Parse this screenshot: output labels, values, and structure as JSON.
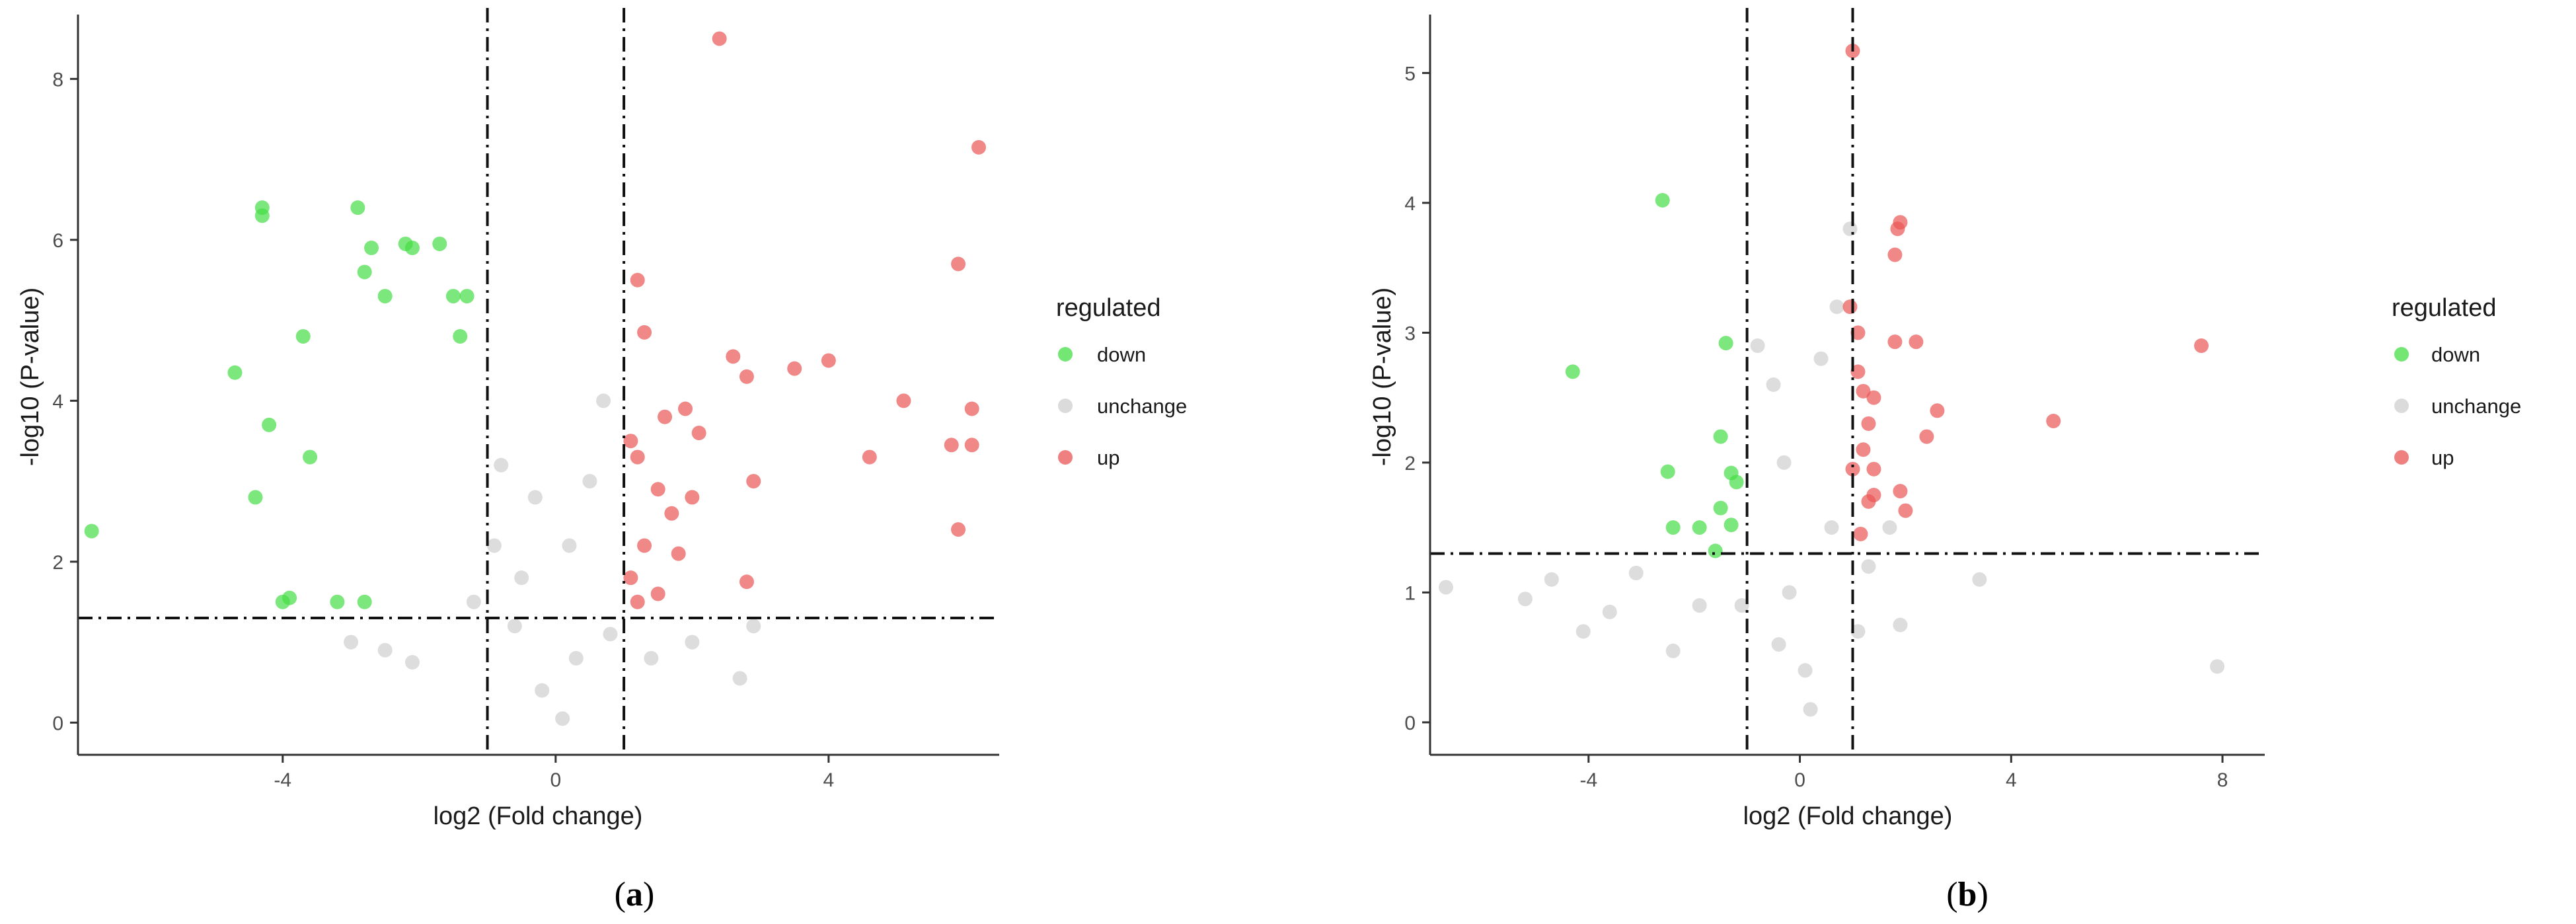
{
  "colors": {
    "down": "#44dd44",
    "unchange": "#cfcfcf",
    "up": "#e95555",
    "line": "#111111"
  },
  "chart_data": [
    {
      "id": "a",
      "type": "scatter",
      "caption": {
        "open": "(",
        "letter": "a",
        "close": ")"
      },
      "xlabel": "log2 (Fold change)",
      "ylabel": "-log10 (P-value)",
      "xlim": [
        -7,
        6.5
      ],
      "ylim": [
        -0.4,
        8.8
      ],
      "xticks": [
        -4,
        0,
        4
      ],
      "xtick_labels": [
        "-4",
        "0",
        "4"
      ],
      "yticks": [
        0,
        2,
        4,
        6,
        8
      ],
      "ytick_labels": [
        "0",
        "2",
        "4",
        "6",
        "8"
      ],
      "thresholds": {
        "fc": [
          -1,
          1
        ],
        "p": 1.3
      },
      "legend": {
        "title": "regulated",
        "entries": [
          {
            "key": "down",
            "label": "down"
          },
          {
            "key": "unchange",
            "label": "unchange"
          },
          {
            "key": "up",
            "label": "up"
          }
        ]
      },
      "series": [
        {
          "name": "down",
          "points": [
            [
              -6.8,
              2.38
            ],
            [
              -4.7,
              4.35
            ],
            [
              -4.3,
              6.4
            ],
            [
              -4.3,
              6.3
            ],
            [
              -4.2,
              3.7
            ],
            [
              -4.0,
              1.5
            ],
            [
              -3.9,
              1.55
            ],
            [
              -4.4,
              2.8
            ],
            [
              -3.7,
              4.8
            ],
            [
              -3.6,
              3.3
            ],
            [
              -2.9,
              6.4
            ],
            [
              -2.8,
              5.6
            ],
            [
              -2.7,
              5.9
            ],
            [
              -2.5,
              5.3
            ],
            [
              -2.2,
              5.95
            ],
            [
              -2.1,
              5.9
            ],
            [
              -1.7,
              5.95
            ],
            [
              -1.5,
              5.3
            ],
            [
              -1.3,
              5.3
            ],
            [
              -1.4,
              4.8
            ],
            [
              -3.2,
              1.5
            ],
            [
              -2.8,
              1.5
            ]
          ]
        },
        {
          "name": "unchange",
          "points": [
            [
              -3.0,
              1.0
            ],
            [
              -2.5,
              0.9
            ],
            [
              -1.2,
              1.5
            ],
            [
              -0.9,
              2.2
            ],
            [
              -0.8,
              3.2
            ],
            [
              -0.5,
              1.8
            ],
            [
              -0.3,
              2.8
            ],
            [
              0.2,
              2.2
            ],
            [
              0.5,
              3.0
            ],
            [
              0.7,
              4.0
            ],
            [
              1.4,
              0.8
            ],
            [
              2.0,
              1.0
            ],
            [
              2.7,
              0.55
            ],
            [
              2.9,
              1.2
            ],
            [
              -2.1,
              0.75
            ],
            [
              0.8,
              1.1
            ],
            [
              -0.2,
              0.4
            ],
            [
              0.1,
              0.05
            ],
            [
              0.3,
              0.8
            ],
            [
              -0.6,
              1.2
            ]
          ]
        },
        {
          "name": "up",
          "points": [
            [
              2.4,
              8.5
            ],
            [
              6.2,
              7.15
            ],
            [
              5.9,
              5.7
            ],
            [
              1.2,
              5.5
            ],
            [
              1.3,
              4.85
            ],
            [
              2.6,
              4.55
            ],
            [
              2.8,
              4.3
            ],
            [
              3.5,
              4.4
            ],
            [
              4.0,
              4.5
            ],
            [
              5.1,
              4.0
            ],
            [
              6.1,
              3.9
            ],
            [
              4.6,
              3.3
            ],
            [
              5.8,
              3.45
            ],
            [
              6.1,
              3.45
            ],
            [
              5.9,
              2.4
            ],
            [
              2.9,
              3.0
            ],
            [
              2.8,
              1.75
            ],
            [
              1.6,
              3.8
            ],
            [
              1.9,
              3.9
            ],
            [
              2.1,
              3.6
            ],
            [
              1.1,
              3.5
            ],
            [
              1.2,
              3.3
            ],
            [
              1.5,
              2.9
            ],
            [
              2.0,
              2.8
            ],
            [
              1.7,
              2.6
            ],
            [
              1.3,
              2.2
            ],
            [
              1.8,
              2.1
            ],
            [
              1.1,
              1.8
            ],
            [
              1.5,
              1.6
            ],
            [
              1.2,
              1.5
            ]
          ]
        }
      ]
    },
    {
      "id": "b",
      "type": "scatter",
      "caption": {
        "open": "(",
        "letter": "b",
        "close": ")"
      },
      "xlabel": "log2 (Fold change)",
      "ylabel": "-log10 (P-value)",
      "xlim": [
        -7,
        8.8
      ],
      "ylim": [
        -0.25,
        5.45
      ],
      "xticks": [
        -4,
        0,
        4,
        8
      ],
      "xtick_labels": [
        "-4",
        "0",
        "4",
        "8"
      ],
      "yticks": [
        0,
        1,
        2,
        3,
        4,
        5
      ],
      "ytick_labels": [
        "0",
        "1",
        "2",
        "3",
        "4",
        "5"
      ],
      "thresholds": {
        "fc": [
          -1,
          1
        ],
        "p": 1.3
      },
      "legend": {
        "title": "regulated",
        "entries": [
          {
            "key": "down",
            "label": "down"
          },
          {
            "key": "unchange",
            "label": "unchange"
          },
          {
            "key": "up",
            "label": "up"
          }
        ]
      },
      "series": [
        {
          "name": "down",
          "points": [
            [
              -2.6,
              4.02
            ],
            [
              -4.3,
              2.7
            ],
            [
              -1.4,
              2.92
            ],
            [
              -2.5,
              1.93
            ],
            [
              -1.5,
              2.2
            ],
            [
              -1.3,
              1.92
            ],
            [
              -1.2,
              1.85
            ],
            [
              -1.5,
              1.65
            ],
            [
              -2.4,
              1.5
            ],
            [
              -1.9,
              1.5
            ],
            [
              -1.6,
              1.32
            ],
            [
              -1.3,
              1.52
            ]
          ]
        },
        {
          "name": "unchange",
          "points": [
            [
              -6.7,
              1.04
            ],
            [
              -5.2,
              0.95
            ],
            [
              -4.7,
              1.1
            ],
            [
              -4.1,
              0.7
            ],
            [
              -3.6,
              0.85
            ],
            [
              -3.1,
              1.15
            ],
            [
              -2.4,
              0.55
            ],
            [
              -1.9,
              0.9
            ],
            [
              -1.1,
              0.9
            ],
            [
              -0.8,
              2.9
            ],
            [
              -0.5,
              2.6
            ],
            [
              -0.3,
              2.0
            ],
            [
              0.4,
              2.8
            ],
            [
              0.7,
              3.2
            ],
            [
              0.95,
              3.8
            ],
            [
              0.6,
              1.5
            ],
            [
              -0.2,
              1.0
            ],
            [
              0.1,
              0.4
            ],
            [
              0.2,
              0.1
            ],
            [
              -0.4,
              0.6
            ],
            [
              1.3,
              1.2
            ],
            [
              1.7,
              1.5
            ],
            [
              3.4,
              1.1
            ],
            [
              1.9,
              0.75
            ],
            [
              7.9,
              0.43
            ],
            [
              1.1,
              0.7
            ]
          ]
        },
        {
          "name": "up",
          "points": [
            [
              1.0,
              5.17
            ],
            [
              1.9,
              3.85
            ],
            [
              1.85,
              3.8
            ],
            [
              1.8,
              3.6
            ],
            [
              0.95,
              3.2
            ],
            [
              1.1,
              3.0
            ],
            [
              1.8,
              2.93
            ],
            [
              2.2,
              2.93
            ],
            [
              7.6,
              2.9
            ],
            [
              1.1,
              2.7
            ],
            [
              1.2,
              2.55
            ],
            [
              1.4,
              2.5
            ],
            [
              2.6,
              2.4
            ],
            [
              4.8,
              2.32
            ],
            [
              1.3,
              2.3
            ],
            [
              1.2,
              2.1
            ],
            [
              2.4,
              2.2
            ],
            [
              1.4,
              1.95
            ],
            [
              1.3,
              1.7
            ],
            [
              1.4,
              1.75
            ],
            [
              1.9,
              1.78
            ],
            [
              2.0,
              1.63
            ],
            [
              1.15,
              1.45
            ],
            [
              1.0,
              1.95
            ]
          ]
        }
      ]
    }
  ]
}
